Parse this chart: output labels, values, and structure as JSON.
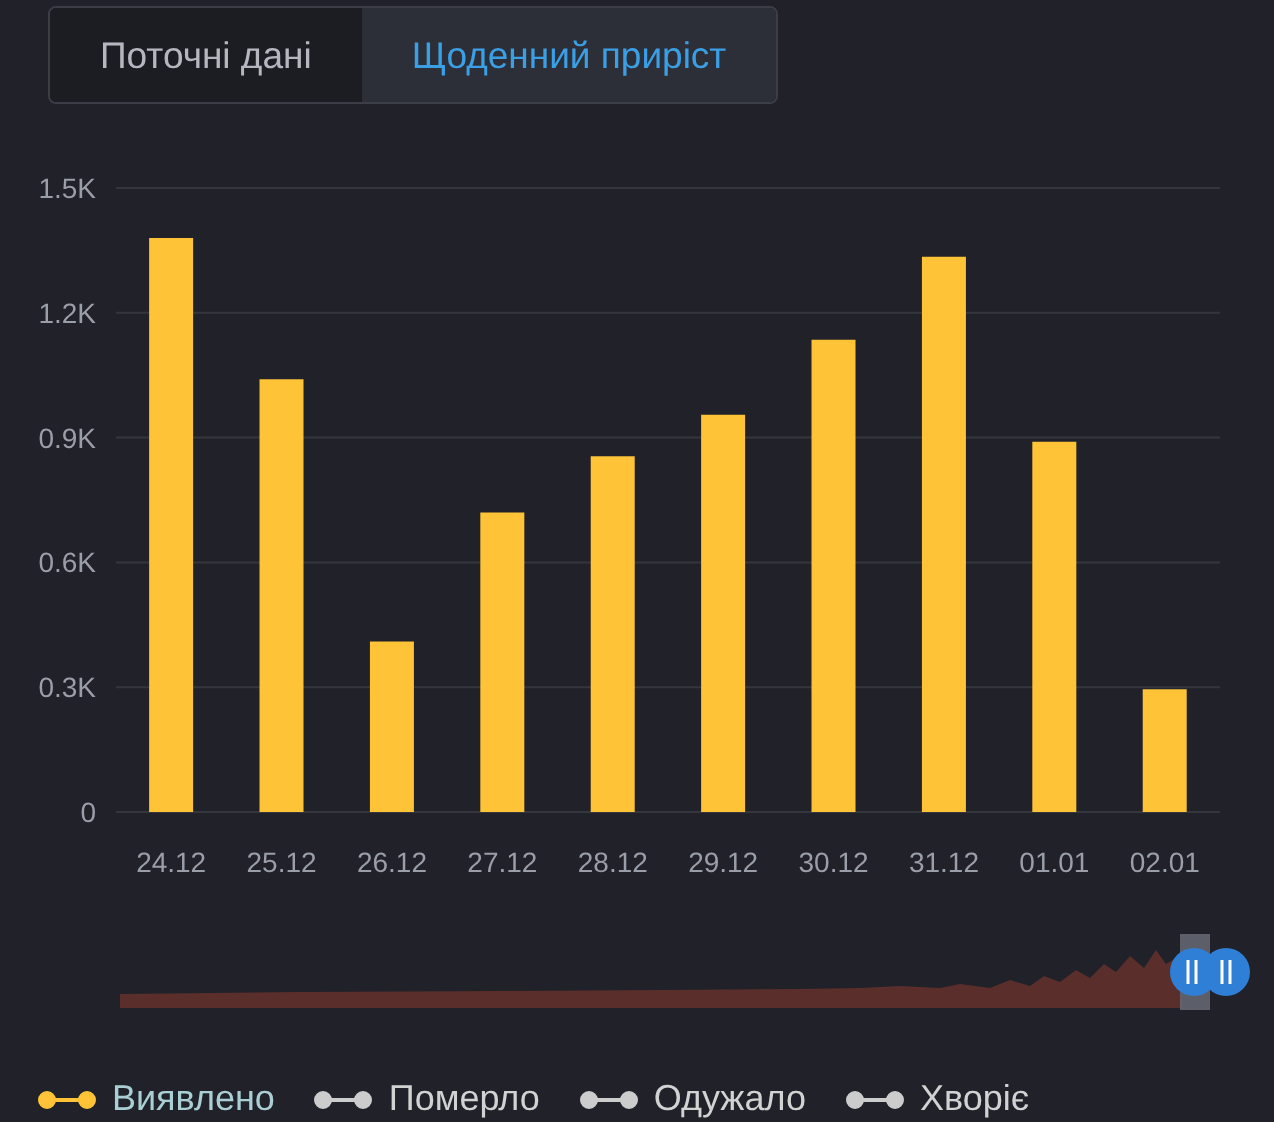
{
  "chart_data": {
    "type": "bar",
    "annotations": [
      "Поточні дані",
      "Щоденний приріст"
    ],
    "categories": [
      "24.12",
      "25.12",
      "26.12",
      "27.12",
      "28.12",
      "29.12",
      "30.12",
      "31.12",
      "01.01",
      "02.01"
    ],
    "series": [
      {
        "name": "Виявлено",
        "color": "#fec336",
        "values": [
          1380,
          1040,
          410,
          720,
          855,
          955,
          1135,
          1335,
          890,
          295
        ]
      },
      {
        "name": "Померло",
        "color": "#cccccc",
        "values": [
          null,
          null,
          null,
          null,
          null,
          null,
          null,
          null,
          null,
          null
        ]
      },
      {
        "name": "Одужало",
        "color": "#cccccc",
        "values": [
          null,
          null,
          null,
          null,
          null,
          null,
          null,
          null,
          null,
          null
        ]
      },
      {
        "name": "Хворіє",
        "color": "#cccccc",
        "values": [
          null,
          null,
          null,
          null,
          null,
          null,
          null,
          null,
          null,
          null
        ]
      }
    ],
    "ylim": [
      0,
      1500
    ],
    "yticks": [
      0,
      {
        "value": 300,
        "label": "0.3K"
      },
      {
        "value": 600,
        "label": "0.6K"
      },
      {
        "value": 900,
        "label": "0.9K"
      },
      {
        "value": 1200,
        "label": "1.2K"
      },
      {
        "value": 1500,
        "label": "1.5K"
      }
    ],
    "grid": "y",
    "legend": "bottom left"
  }
}
